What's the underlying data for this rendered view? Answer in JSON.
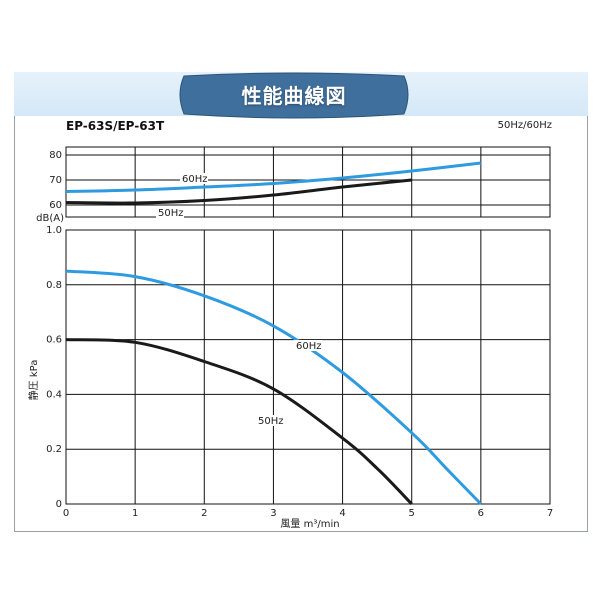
{
  "header": {
    "title": "性能曲線図",
    "model": "EP-63S/EP-63T",
    "frequency": "50Hz/60Hz"
  },
  "colors": {
    "series_60hz": "#2e9be0",
    "series_50hz": "#1a1a1a",
    "badge": "#3f6f9c",
    "header_band": "#dcecf8"
  },
  "chart_data": [
    {
      "type": "line",
      "ylabel": "dB(A)",
      "ylim": [
        60,
        80
      ],
      "yticks": [
        "60",
        "70",
        "80"
      ],
      "grid": true,
      "series": [
        {
          "name": "60Hz",
          "x": [
            0,
            1,
            2,
            3,
            4,
            5,
            6
          ],
          "y": [
            65.4,
            66.0,
            67.2,
            68.6,
            70.8,
            73.6,
            76.8
          ]
        },
        {
          "name": "50Hz",
          "x": [
            0,
            1,
            2,
            3,
            4,
            5
          ],
          "y": [
            61.0,
            60.8,
            61.8,
            64.0,
            67.2,
            70.0
          ]
        }
      ]
    },
    {
      "type": "line",
      "xlabel": "風量 m³/min",
      "ylabel": "静圧 kPa",
      "xlim": [
        0,
        7
      ],
      "ylim": [
        0,
        1.0
      ],
      "xticks": [
        "0",
        "1",
        "2",
        "3",
        "4",
        "5",
        "6",
        "7"
      ],
      "yticks": [
        "0",
        "0.2",
        "0.4",
        "0.6",
        "0.8",
        "1.0"
      ],
      "grid": true,
      "series": [
        {
          "name": "60Hz",
          "x": [
            0,
            1,
            2,
            3,
            4,
            5,
            5.5,
            6
          ],
          "y": [
            0.85,
            0.83,
            0.76,
            0.65,
            0.48,
            0.26,
            0.13,
            0
          ]
        },
        {
          "name": "50Hz",
          "x": [
            0,
            1,
            2,
            3,
            4,
            4.5,
            5
          ],
          "y": [
            0.6,
            0.59,
            0.52,
            0.42,
            0.24,
            0.13,
            0
          ]
        }
      ]
    }
  ]
}
